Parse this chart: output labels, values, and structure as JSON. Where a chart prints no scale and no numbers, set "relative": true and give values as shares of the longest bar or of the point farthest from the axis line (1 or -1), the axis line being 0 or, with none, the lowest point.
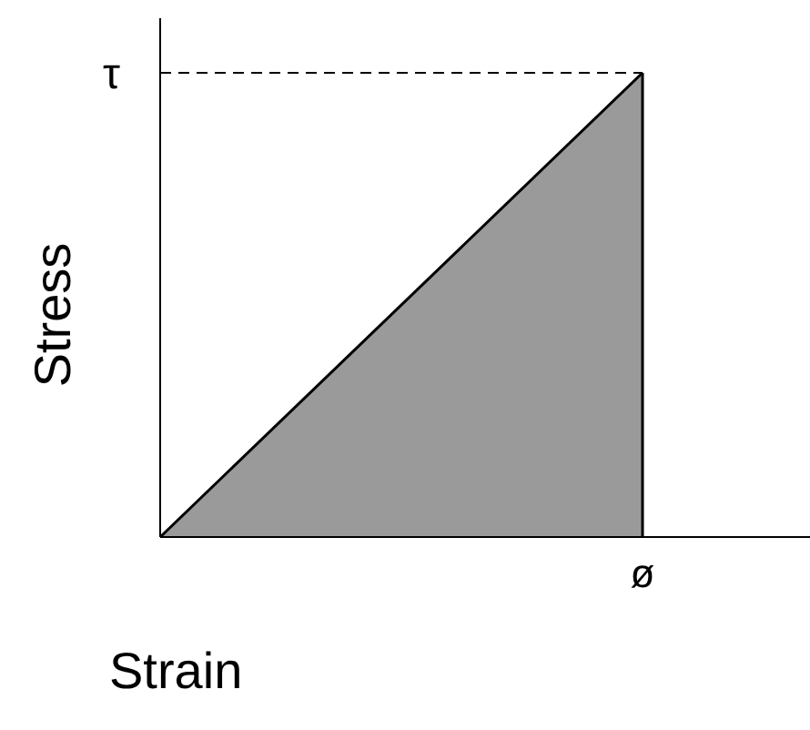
{
  "chart_data": {
    "type": "area",
    "relative": true,
    "xlabel": "Strain",
    "ylabel": "Stress",
    "categories": [
      null,
      null
    ],
    "series": [
      {
        "color": "#9a9a9a",
        "values": [
          0,
          1
        ]
      }
    ],
    "annotations": [
      "τ",
      "ø"
    ],
    "ref_lines": [
      {
        "axis": "y",
        "value": 1,
        "line_style": "dashed"
      }
    ],
    "grid": false,
    "legend": false
  }
}
